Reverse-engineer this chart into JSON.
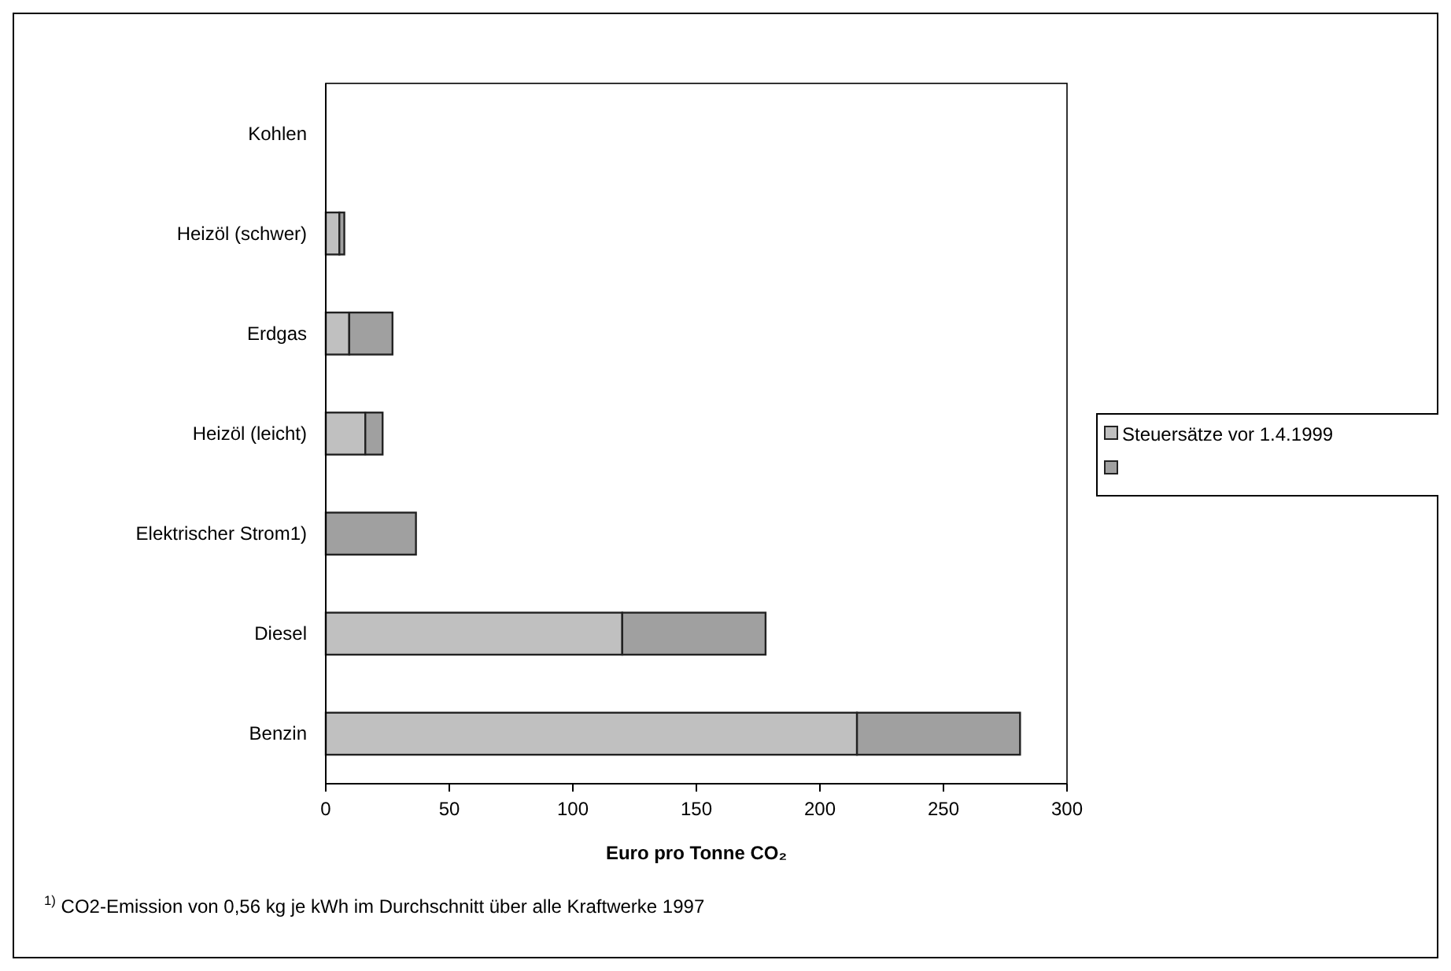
{
  "chart_data": {
    "type": "bar",
    "orientation": "horizontal",
    "stacked": true,
    "categories": [
      "Kohlen",
      "Heizöl (schwer)",
      "Erdgas",
      "Heizöl (leicht)",
      "Elektrischer Strom1)",
      "Diesel",
      "Benzin"
    ],
    "series": [
      {
        "name": "Steuersätze vor 1.4.1999",
        "color": "#c0c0c0",
        "values": [
          0,
          5.5,
          9.5,
          16,
          0,
          120,
          215
        ]
      },
      {
        "color": "#a0a0a0",
        "values": [
          0,
          2,
          17.5,
          7,
          36.5,
          58,
          66
        ]
      }
    ],
    "xlim": [
      0,
      300
    ],
    "xticks": [
      0,
      50,
      100,
      150,
      200,
      250,
      300
    ],
    "xlabel": "Euro pro Tonne CO₂",
    "legend": "right",
    "grid": false,
    "annotations": [
      "$^{1)}$ CO2-Emission von 0,56 kg je kWh im Durchschnitt über alle Kraftwerke 1997"
    ]
  }
}
